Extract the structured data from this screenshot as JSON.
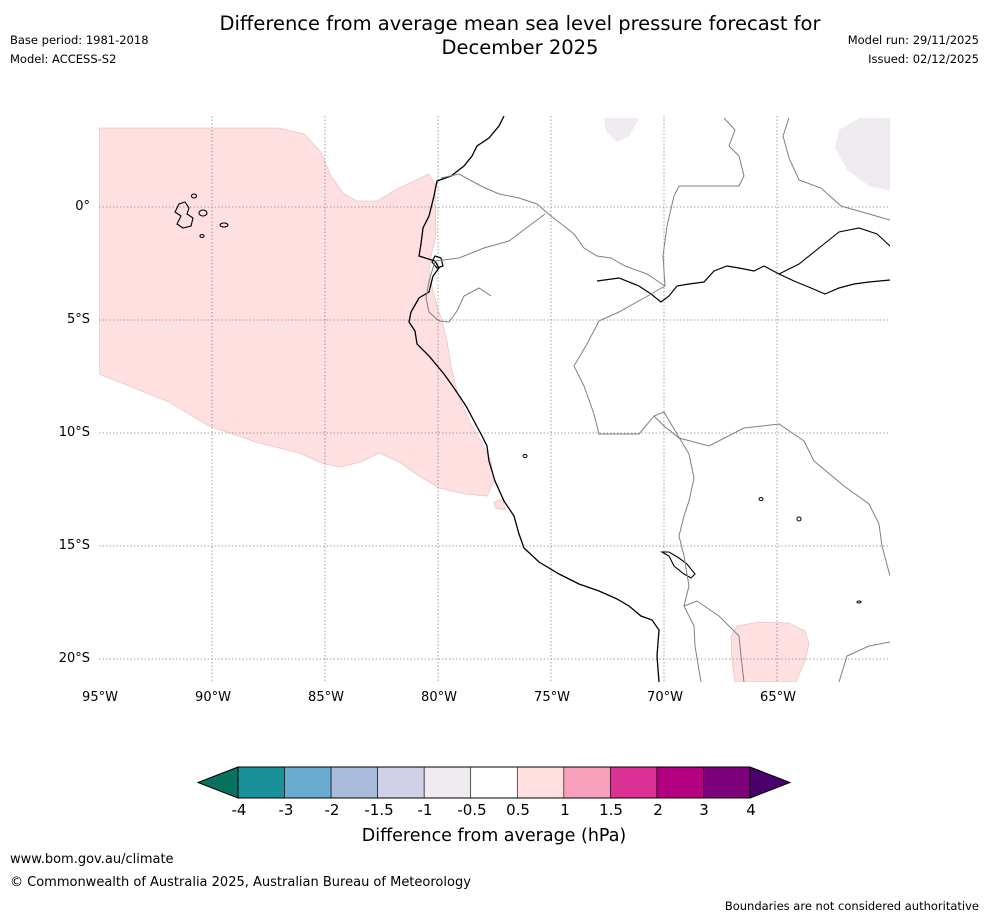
{
  "header": {
    "title_line1": "Difference from average mean sea level pressure forecast for",
    "title_line2": "December 2025",
    "base_period": "Base period: 1981-2018",
    "model": "Model: ACCESS-S2",
    "model_run": "Model run: 29/11/2025",
    "issued": "Issued: 02/12/2025"
  },
  "map": {
    "lat_labels": [
      "0°",
      "5°S",
      "10°S",
      "15°S",
      "20°S"
    ],
    "lon_labels": [
      "95°W",
      "90°W",
      "85°W",
      "80°W",
      "75°W",
      "70°W",
      "65°W"
    ]
  },
  "colorbar": {
    "title": "Difference from average (hPa)",
    "labels": [
      "-4",
      "-3",
      "-2",
      "-1.5",
      "-1",
      "-0.5",
      "0.5",
      "1",
      "1.5",
      "2",
      "3",
      "4"
    ],
    "colors": [
      "#1a9098",
      "#6aabd2",
      "#a9bcdc",
      "#d0d0e6",
      "#efebf0",
      "#ffffff",
      "#fde0df",
      "#f9a0bd",
      "#dc3296",
      "#b20080",
      "#7d007b"
    ],
    "extend_low_color": "#0a7060",
    "extend_high_color": "#49006a"
  },
  "footer": {
    "url": "www.bom.gov.au/climate",
    "copyright": "© Commonwealth of Australia 2025, Australian Bureau of Meteorology",
    "note": "Boundaries are not considered authoritative"
  }
}
